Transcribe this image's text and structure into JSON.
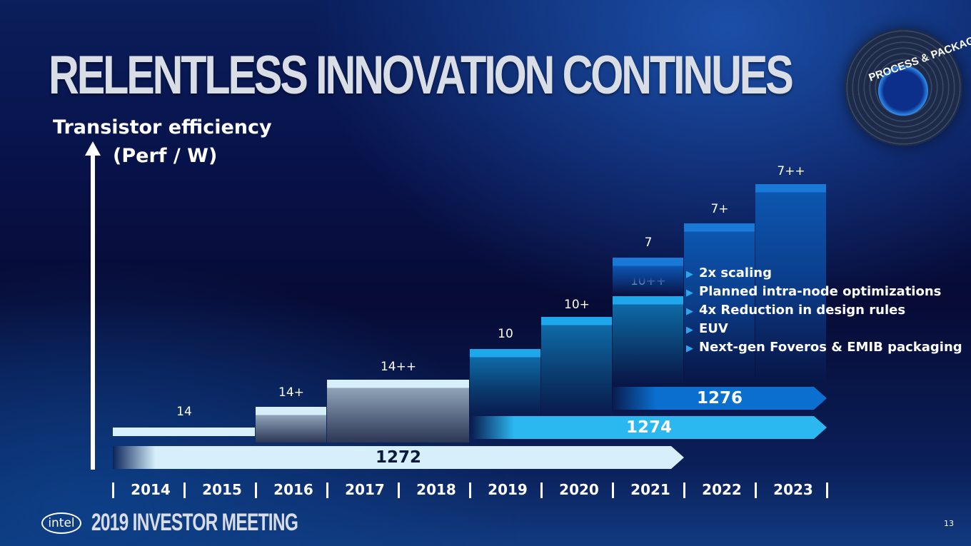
{
  "title": "RELENTLESS INNOVATION CONTINUES",
  "badge": "PROCESS & PACKAGING",
  "footer": {
    "logo": "intel",
    "event": "2019 INVESTOR MEETING",
    "page": "13"
  },
  "chart_data": {
    "type": "bar",
    "ylabel_line1": "Transistor efficiency",
    "ylabel_line2": "(Perf / W)",
    "years": [
      "2014",
      "2015",
      "2016",
      "2017",
      "2018",
      "2019",
      "2020",
      "2021",
      "2022",
      "2023"
    ],
    "nodes": [
      {
        "label": "14",
        "start": "2014",
        "end": "2015"
      },
      {
        "label": "14+",
        "start": "2016",
        "end": "2016"
      },
      {
        "label": "14++",
        "start": "2017",
        "end": "2018"
      },
      {
        "label": "10",
        "start": "2019",
        "end": "2019"
      },
      {
        "label": "10+",
        "start": "2020",
        "end": "2020"
      },
      {
        "label": "10++",
        "start": "2021",
        "end": "2021"
      },
      {
        "label": "7",
        "start": "2021",
        "end": "2021"
      },
      {
        "label": "7+",
        "start": "2022",
        "end": "2022"
      },
      {
        "label": "7++",
        "start": "2023",
        "end": "2023"
      }
    ],
    "processes": [
      {
        "label": "1276",
        "start": "2021",
        "end": "2023",
        "color": "#0a6fcf"
      },
      {
        "label": "1274",
        "start": "2019",
        "end": "2023",
        "color": "#2bb8f0"
      },
      {
        "label": "1272",
        "start": "2014",
        "end": "2021",
        "color": "#d6effb"
      }
    ],
    "bullets": [
      "2x scaling",
      "Planned intra-node optimizations",
      "4x Reduction in design rules",
      "EUV",
      "Next-gen Foveros & EMIB packaging"
    ]
  }
}
